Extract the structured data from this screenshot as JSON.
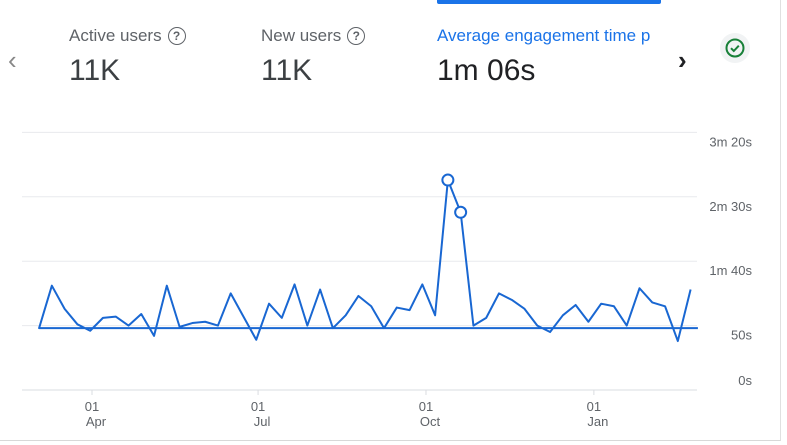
{
  "metrics": [
    {
      "label": "Active users",
      "value": "11K",
      "help_icon": "question-circle-icon"
    },
    {
      "label": "New users",
      "value": "11K",
      "help_icon": "question-circle-icon"
    },
    {
      "label": "Average engagement time p",
      "value": "1m 06s"
    }
  ],
  "nav": {
    "prev_icon": "chevron-left-icon",
    "next_icon": "chevron-right-icon"
  },
  "status_icon": "check-circle-icon",
  "colors": {
    "accent": "#1a73e8",
    "line": "#1967d2",
    "check": "#188038"
  },
  "chart_data": {
    "type": "line",
    "y_ticks": [
      {
        "value": 200,
        "label": "3m 20s"
      },
      {
        "value": 150,
        "label": "2m 30s"
      },
      {
        "value": 100,
        "label": "1m 40s"
      },
      {
        "value": 50,
        "label": "50s"
      },
      {
        "value": 0,
        "label": "0s"
      }
    ],
    "ylim": [
      0,
      200
    ],
    "y_unit": "seconds",
    "grid": true,
    "x_ticks": [
      {
        "date": "Apr 1",
        "day": "01",
        "month": "Apr"
      },
      {
        "date": "Jul 1",
        "day": "01",
        "month": "Jul"
      },
      {
        "date": "Oct 1",
        "day": "01",
        "month": "Oct"
      },
      {
        "date": "Jan 1",
        "day": "01",
        "month": "Jan"
      }
    ],
    "x": [
      "Feb 27",
      "Mar 3",
      "Mar 10",
      "Mar 17",
      "Mar 24",
      "Mar 31",
      "Apr 7",
      "Apr 14",
      "Apr 21",
      "Apr 28",
      "May 5",
      "May 12",
      "May 19",
      "May 26",
      "Jun 2",
      "Jun 9",
      "Jun 16",
      "Jun 23",
      "Jun 30",
      "Jul 7",
      "Jul 14",
      "Jul 21",
      "Jul 28",
      "Aug 4",
      "Aug 11",
      "Aug 18",
      "Aug 25",
      "Sep 1",
      "Sep 8",
      "Sep 15",
      "Sep 22",
      "Sep 29",
      "Oct 6",
      "Oct 13",
      "Oct 20",
      "Oct 27",
      "Nov 3",
      "Nov 10",
      "Nov 17",
      "Nov 24",
      "Dec 1",
      "Dec 8",
      "Dec 15",
      "Dec 22",
      "Dec 29",
      "Jan 5",
      "Jan 12",
      "Jan 19",
      "Jan 26",
      "Feb 2",
      "Feb 9",
      "Feb 16",
      "Feb 23"
    ],
    "values": [
      48,
      48,
      81,
      63,
      51,
      46,
      56,
      57,
      50,
      59,
      42,
      81,
      49,
      52,
      53,
      50,
      75,
      57,
      39,
      67,
      56,
      82,
      50,
      78,
      48,
      58,
      73,
      65,
      48,
      64,
      62,
      82,
      58,
      163,
      138,
      50,
      56,
      75,
      70,
      63,
      50,
      45,
      58,
      66,
      53,
      67,
      65,
      50,
      79,
      68,
      65,
      38,
      78
    ],
    "highlighted_points": [
      "Oct 13",
      "Oct 20"
    ]
  }
}
